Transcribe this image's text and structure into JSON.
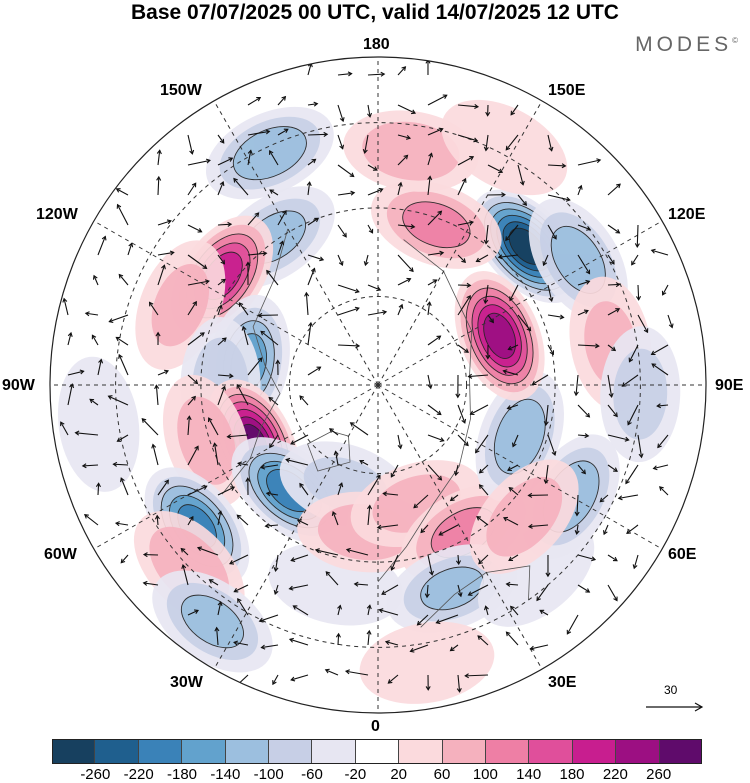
{
  "header": {
    "title": "Base 07/07/2025 00 UTC, valid 14/07/2025 12 UTC",
    "brand": "MODES",
    "brand_mark": "©"
  },
  "longitude_labels": [
    "180",
    "150E",
    "120E",
    "90E",
    "60E",
    "30E",
    "0",
    "30W",
    "60W",
    "90W",
    "120W",
    "150W"
  ],
  "reference_vector": {
    "label": "30"
  },
  "colorbar": {
    "colors": [
      "#17405f",
      "#1f5f8e",
      "#3a82b8",
      "#62a2cd",
      "#9cbfdf",
      "#c7cfe6",
      "#e7e6f2",
      "#ffffff",
      "#fbdadd",
      "#f5b1be",
      "#ee7fa5",
      "#e04f9b",
      "#c81e8f",
      "#9c0f82",
      "#5f0b6b"
    ],
    "ticks": [
      "-260",
      "-220",
      "-180",
      "-140",
      "-100",
      "-60",
      "-20",
      "20",
      "60",
      "100",
      "140",
      "180",
      "220",
      "260"
    ]
  },
  "anomalies": [
    {
      "lon": 133,
      "r": 0.62,
      "v": -280
    },
    {
      "lon": 122,
      "r": 0.72,
      "v": -120
    },
    {
      "lon": 160,
      "r": 0.52,
      "v": 110
    },
    {
      "lon": 172,
      "r": 0.72,
      "v": 90
    },
    {
      "lon": 152,
      "r": 0.82,
      "v": 50
    },
    {
      "lon": -145,
      "r": 0.55,
      "v": -110
    },
    {
      "lon": -155,
      "r": 0.78,
      "v": -130
    },
    {
      "lon": -125,
      "r": 0.58,
      "v": 200
    },
    {
      "lon": -112,
      "r": 0.65,
      "v": 60
    },
    {
      "lon": -100,
      "r": 0.4,
      "v": -150
    },
    {
      "lon": -90,
      "r": 0.48,
      "v": -80
    },
    {
      "lon": -82,
      "r": 0.86,
      "v": -30
    },
    {
      "lon": -65,
      "r": 0.42,
      "v": 270
    },
    {
      "lon": -72,
      "r": 0.55,
      "v": 70
    },
    {
      "lon": -40,
      "r": 0.42,
      "v": -200
    },
    {
      "lon": -52,
      "r": 0.7,
      "v": -190
    },
    {
      "lon": -46,
      "r": 0.8,
      "v": 90
    },
    {
      "lon": -35,
      "r": 0.88,
      "v": -110
    },
    {
      "lon": -18,
      "r": 0.32,
      "v": -60
    },
    {
      "lon": -12,
      "r": 0.62,
      "v": -50
    },
    {
      "lon": -5,
      "r": 0.45,
      "v": 80
    },
    {
      "lon": 18,
      "r": 0.38,
      "v": 70
    },
    {
      "lon": 30,
      "r": 0.52,
      "v": 110
    },
    {
      "lon": 20,
      "r": 0.66,
      "v": -100
    },
    {
      "lon": 40,
      "r": 0.75,
      "v": -50
    },
    {
      "lon": 70,
      "r": 0.46,
      "v": -130
    },
    {
      "lon": 60,
      "r": 0.68,
      "v": -130
    },
    {
      "lon": 48,
      "r": 0.6,
      "v": 80
    },
    {
      "lon": 112,
      "r": 0.4,
      "v": 240
    },
    {
      "lon": 100,
      "r": 0.72,
      "v": 60
    },
    {
      "lon": 88,
      "r": 0.8,
      "v": -70
    },
    {
      "lon": 10,
      "r": 0.86,
      "v": 40
    }
  ]
}
